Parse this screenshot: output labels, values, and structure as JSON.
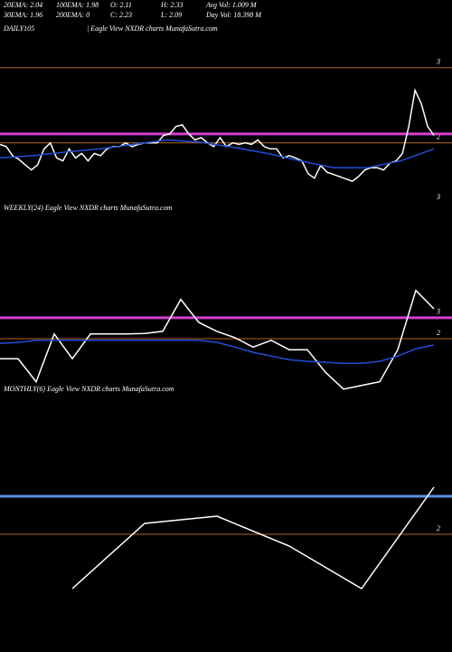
{
  "header": {
    "stats": [
      [
        "20EMA: 2.04",
        "100EMA: 1.98",
        "O: 2.11",
        "H: 2.33",
        "Avg Vol: 1.009  M"
      ],
      [
        "30EMA: 1.96",
        "200EMA: 0",
        "C: 2.23",
        "L: 2.09",
        "Day Vol: 18.398  M"
      ]
    ]
  },
  "chart_data": [
    {
      "type": "line",
      "title": "DAILY105",
      "subtitle": "| Eagle  View  NXDR charts MunafaSutra.com",
      "ylim": [
        1.19,
        3.54
      ],
      "yticks": [
        3,
        2
      ],
      "grid": true,
      "grid_color": "#b5651d",
      "levels": [
        {
          "value": 2.12,
          "color": "#d43fd4"
        }
      ],
      "annotations": [
        "3"
      ],
      "series": [
        {
          "color": "#ffffff",
          "values": [
            1.98,
            1.95,
            1.83,
            1.78,
            1.71,
            1.64,
            1.71,
            1.92,
            2.0,
            1.8,
            1.76,
            1.92,
            1.8,
            1.86,
            1.76,
            1.86,
            1.83,
            1.92,
            1.95,
            1.95,
            2.0,
            1.95,
            1.98,
            2.0,
            2.0,
            2.0,
            2.1,
            2.12,
            2.22,
            2.24,
            2.12,
            2.04,
            2.07,
            2.0,
            1.95,
            2.07,
            1.95,
            2.0,
            1.98,
            2.0,
            1.98,
            2.04,
            1.95,
            1.92,
            1.92,
            1.8,
            1.83,
            1.8,
            1.76,
            1.59,
            1.53,
            1.7,
            1.61,
            1.58,
            1.55,
            1.52,
            1.49,
            1.55,
            1.64,
            1.67,
            1.67,
            1.64,
            1.73,
            1.76,
            1.86,
            2.22,
            2.7,
            2.52,
            2.22,
            2.1
          ]
        },
        {
          "color": "#1f4fd8",
          "values": [
            1.8,
            1.83,
            1.88,
            1.92,
            1.98,
            2.04,
            2.01,
            1.94,
            1.86,
            1.76,
            1.67,
            1.67,
            1.76,
            1.92
          ]
        }
      ]
    },
    {
      "type": "line",
      "title": "WEEKLY(24) Eagle  View  NXDR charts MunafaSutra.com",
      "ylim": [
        1.2,
        4.72
      ],
      "yticks": [
        {
          "value": 2.6,
          "label": "3"
        },
        {
          "value": 2.2,
          "label": "2"
        }
      ],
      "grid": true,
      "grid_color": "#b5651d",
      "levels": [
        {
          "value": 2.6,
          "color": "#d43fd4"
        }
      ],
      "series": [
        {
          "color": "#ffffff",
          "values": [
            1.82,
            1.82,
            1.38,
            2.29,
            1.82,
            2.29,
            2.29,
            2.29,
            2.3,
            2.34,
            2.95,
            2.51,
            2.34,
            2.22,
            2.04,
            2.17,
            1.99,
            1.99,
            1.56,
            1.24,
            1.31,
            1.38,
            1.99,
            3.12,
            2.77
          ]
        },
        {
          "color": "#1f4fd8",
          "values": [
            2.11,
            2.13,
            2.17,
            2.17,
            2.17,
            2.17,
            2.17,
            2.17,
            2.17,
            2.17,
            2.17,
            2.17,
            2.13,
            2.04,
            1.94,
            1.87,
            1.8,
            1.77,
            1.75,
            1.73,
            1.73,
            1.77,
            1.87,
            2.01,
            2.08
          ]
        }
      ]
    },
    {
      "type": "line",
      "title": "MONTHLY(6) Eagle  View  NXDR charts MunafaSutra.com",
      "ylim": [
        0.7,
        3.58
      ],
      "yticks": [
        2
      ],
      "grid": true,
      "grid_color": "#b5651d",
      "levels": [
        {
          "value": 2.42,
          "color": "#5b8ee6"
        }
      ],
      "series": [
        {
          "color": "#ffffff",
          "values": [
            null,
            1.4,
            2.12,
            2.2,
            1.87,
            1.4,
            2.52
          ]
        }
      ]
    }
  ]
}
